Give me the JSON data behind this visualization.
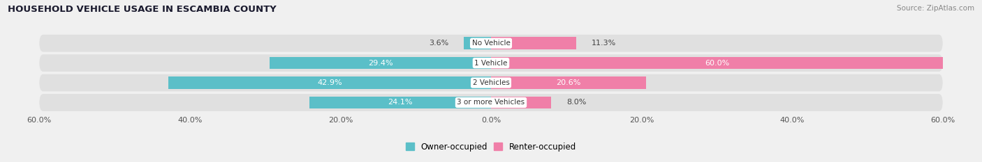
{
  "title": "HOUSEHOLD VEHICLE USAGE IN ESCAMBIA COUNTY",
  "source": "Source: ZipAtlas.com",
  "categories": [
    "No Vehicle",
    "1 Vehicle",
    "2 Vehicles",
    "3 or more Vehicles"
  ],
  "owner_values": [
    3.6,
    29.4,
    42.9,
    24.1
  ],
  "renter_values": [
    11.3,
    60.0,
    20.6,
    8.0
  ],
  "owner_color": "#5bbfc8",
  "renter_color": "#f07fa8",
  "owner_label": "Owner-occupied",
  "renter_label": "Renter-occupied",
  "xlim": [
    -60,
    60
  ],
  "bar_height": 0.62,
  "background_color": "#f0f0f0",
  "bar_bg_color": "#e0e0e0",
  "title_color": "#1a1a2e",
  "source_color": "#888888",
  "label_color_light": "#ffffff",
  "label_color_dark": "#444444",
  "x_tick_values": [
    -60,
    -40,
    -20,
    0,
    20,
    40,
    60
  ]
}
